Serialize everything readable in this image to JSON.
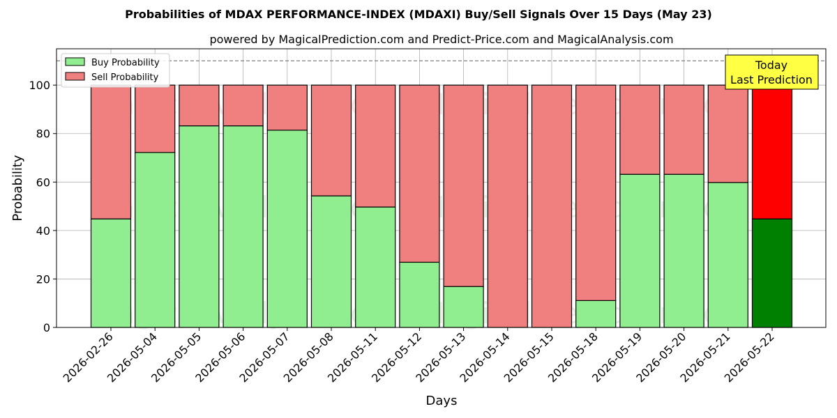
{
  "chart_data": {
    "type": "bar",
    "title": "Probabilities of MDAX PERFORMANCE-INDEX (MDAXI) Buy/Sell Signals Over 15 Days (May 23)",
    "subtitle": "powered by MagicalPrediction.com and Predict-Price.com and MagicalAnalysis.com",
    "xlabel": "Days",
    "ylabel": "Probability",
    "ylim": [
      0,
      115
    ],
    "yticks": [
      0,
      20,
      40,
      60,
      80,
      100
    ],
    "categories": [
      "2026-02-26",
      "2026-05-04",
      "2026-05-05",
      "2026-05-06",
      "2026-05-07",
      "2026-05-08",
      "2026-05-11",
      "2026-05-12",
      "2026-05-13",
      "2026-05-14",
      "2026-05-15",
      "2026-05-18",
      "2026-05-19",
      "2026-05-20",
      "2026-05-21",
      "2026-05-22"
    ],
    "series": [
      {
        "name": "Buy Probability",
        "color": "#90ee90",
        "highlight_color": "#008000",
        "values": [
          44.8,
          72.2,
          83.2,
          83.2,
          81.4,
          54.3,
          49.7,
          26.9,
          16.9,
          0,
          0,
          11.1,
          63.2,
          63.2,
          59.8,
          44.8
        ]
      },
      {
        "name": "Sell Probability",
        "color": "#f08080",
        "highlight_color": "#ff0000",
        "values": [
          55.2,
          27.8,
          16.8,
          16.8,
          18.6,
          45.7,
          50.3,
          73.1,
          83.1,
          100,
          100,
          88.9,
          36.8,
          36.8,
          40.2,
          55.2
        ]
      }
    ],
    "stacked": true,
    "highlight_index": 15,
    "reference_line": {
      "value": 110,
      "style": "dashed"
    },
    "annotation": {
      "lines": [
        "Today",
        "Last Prediction"
      ],
      "background": "#ffff44"
    },
    "legend": {
      "placement": "top-left",
      "entries": [
        "Buy Probability",
        "Sell Probability"
      ]
    },
    "watermarks": [
      "MagicalAnalysis.com",
      "MagicalPrediction.com"
    ],
    "grid": true
  }
}
